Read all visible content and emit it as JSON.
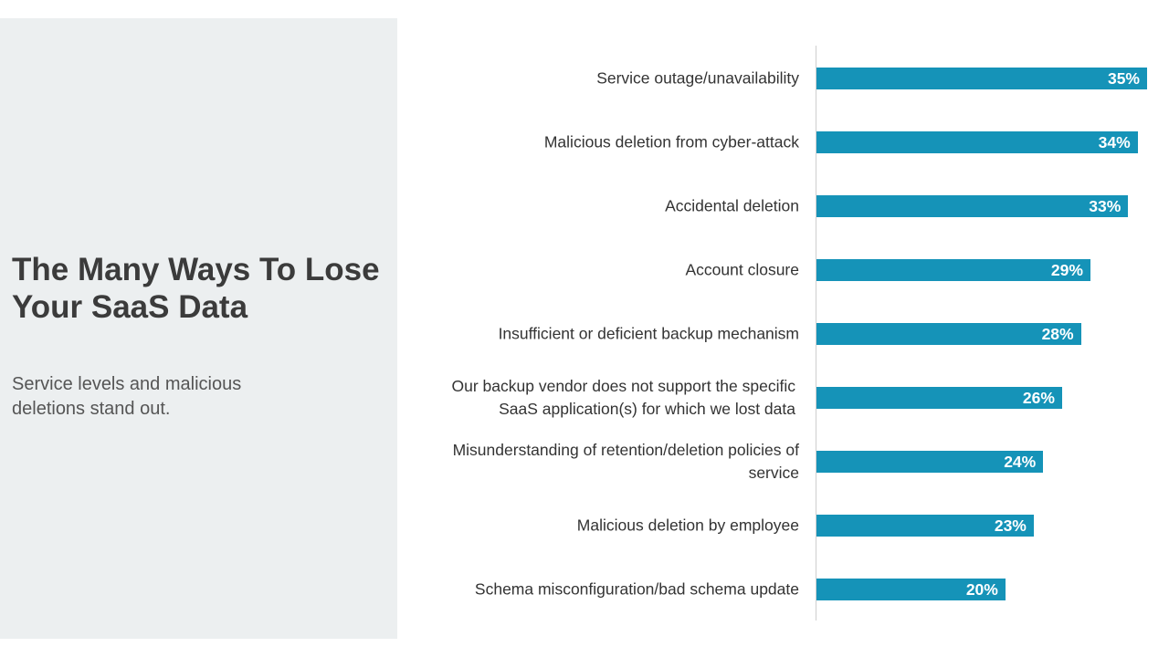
{
  "slide": {
    "title": "The Many Ways To Lose Your SaaS Data",
    "subtitle": "Service levels and malicious deletions stand out."
  },
  "chart_data": {
    "type": "bar",
    "orientation": "horizontal",
    "categories": [
      "Service outage/unavailability",
      "Malicious deletion from cyber-attack",
      "Accidental deletion",
      "Account closure",
      "Insufficient or deficient backup mechanism",
      "Our backup vendor does not support the specific SaaS application(s) for which we lost data",
      "Misunderstanding of retention/deletion policies of service",
      "Malicious deletion by employee",
      "Schema misconfiguration/bad schema update"
    ],
    "values": [
      35,
      34,
      33,
      29,
      28,
      26,
      24,
      23,
      20
    ],
    "value_labels": [
      "35%",
      "34%",
      "33%",
      "29%",
      "28%",
      "26%",
      "24%",
      "23%",
      "20%"
    ],
    "xlim": [
      0,
      35
    ],
    "grid": false,
    "bar_color": "#1593b8"
  }
}
